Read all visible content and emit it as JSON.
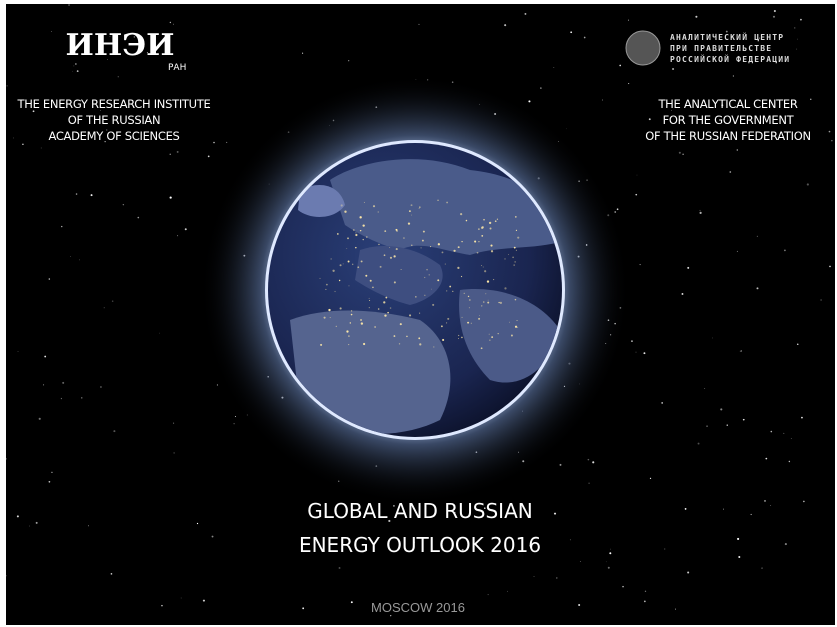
{
  "left_org": {
    "logo": "ИНЭИ",
    "logo_sub": "РАН",
    "lines": [
      "THE ENERGY RESEARCH INSTITUTE",
      "OF THE RUSSIAN",
      "ACADEMY OF SCIENCES"
    ]
  },
  "right_org": {
    "logo_lines": [
      "АНАЛИТИЧЕСКИЙ ЦЕНТР",
      "ПРИ ПРАВИТЕЛЬСТВЕ",
      "РОССИЙСКОЙ ФЕДЕРАЦИИ"
    ],
    "lines": [
      "THE ANALYTICAL CENTER",
      "FOR THE GOVERNMENT",
      "OF THE RUSSIAN FEDERATION"
    ]
  },
  "title": [
    "GLOBAL AND RUSSIAN",
    "ENERGY OUTLOOK  2016"
  ],
  "footer": "MOSCOW 2016"
}
